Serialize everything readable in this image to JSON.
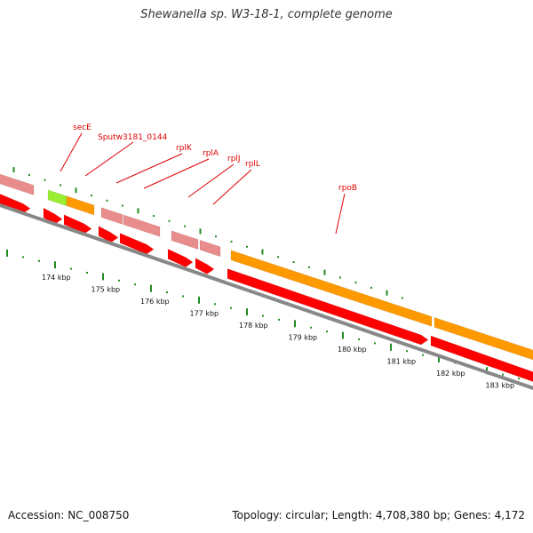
{
  "title": "Shewanella sp. W3-18-1, complete genome",
  "footer": {
    "accession": "Accession: NC_008750",
    "topology": "Topology: circular; Length: 4,708,380 bp; Genes: 4,172"
  },
  "colors": {
    "cds_forward": "#ff0000",
    "cds_light": "#e88c8c",
    "rRNA_orange": "#ff9900",
    "green_feature": "#99ee33",
    "backbone": "#888888",
    "ticks": "#228b22",
    "labels": "#e00000"
  },
  "genes": [
    {
      "name": "secE"
    },
    {
      "name": "Sputw3181_0144"
    },
    {
      "name": "rplK"
    },
    {
      "name": "rplA"
    },
    {
      "name": "rplJ"
    },
    {
      "name": "rplL"
    },
    {
      "name": "rpoB"
    }
  ],
  "kbp_labels": [
    "174 kbp",
    "175 kbp",
    "176 kbp",
    "177 kbp",
    "178 kbp",
    "179 kbp",
    "180 kbp",
    "181 kbp",
    "182 kbp",
    "183 kbp"
  ]
}
